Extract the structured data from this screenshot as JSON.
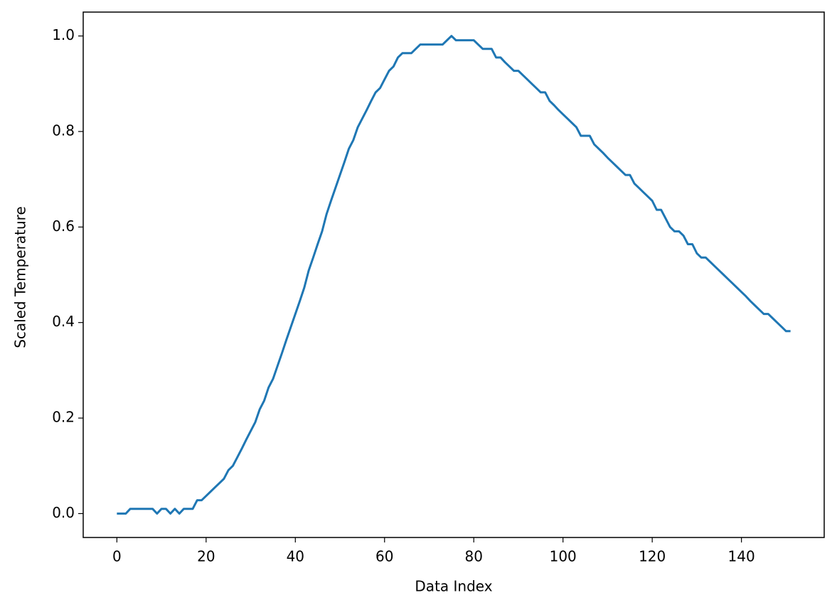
{
  "chart_data": {
    "type": "line",
    "xlabel": "Data Index",
    "ylabel": "Scaled Temperature",
    "color": "#1f77b4",
    "grid": false,
    "x": [
      0,
      1,
      2,
      3,
      4,
      5,
      6,
      7,
      8,
      9,
      10,
      11,
      12,
      13,
      14,
      15,
      16,
      17,
      18,
      19,
      20,
      21,
      22,
      23,
      24,
      25,
      26,
      27,
      28,
      29,
      30,
      31,
      32,
      33,
      34,
      35,
      36,
      37,
      38,
      39,
      40,
      41,
      42,
      43,
      44,
      45,
      46,
      47,
      48,
      49,
      50,
      51,
      52,
      53,
      54,
      55,
      56,
      57,
      58,
      59,
      60,
      61,
      62,
      63,
      64,
      65,
      66,
      67,
      68,
      69,
      70,
      71,
      72,
      73,
      74,
      75,
      76,
      77,
      78,
      79,
      80,
      81,
      82,
      83,
      84,
      85,
      86,
      87,
      88,
      89,
      90,
      91,
      92,
      93,
      94,
      95,
      96,
      97,
      98,
      99,
      100,
      101,
      102,
      103,
      104,
      105,
      106,
      107,
      108,
      109,
      110,
      111,
      112,
      113,
      114,
      115,
      116,
      117,
      118,
      119,
      120,
      121,
      122,
      123,
      124,
      125,
      126,
      127,
      128,
      129,
      130,
      131,
      132,
      133,
      134,
      135,
      136,
      137,
      138,
      139,
      140,
      141,
      142,
      143,
      144,
      145,
      146,
      147,
      148,
      149,
      150,
      151
    ],
    "values": [
      0,
      0,
      0,
      0.01,
      0.01,
      0.01,
      0.01,
      0.01,
      0.01,
      0,
      0.01,
      0.01,
      0,
      0.01,
      0,
      0.01,
      0.01,
      0.01,
      0.028,
      0.028,
      0.037,
      0.046,
      0.055,
      0.064,
      0.073,
      0.091,
      0.1,
      0.118,
      0.136,
      0.155,
      0.173,
      0.191,
      0.218,
      0.236,
      0.264,
      0.282,
      0.309,
      0.336,
      0.364,
      0.391,
      0.418,
      0.445,
      0.473,
      0.509,
      0.536,
      0.564,
      0.591,
      0.627,
      0.655,
      0.682,
      0.709,
      0.736,
      0.764,
      0.782,
      0.809,
      0.827,
      0.845,
      0.864,
      0.882,
      0.891,
      0.909,
      0.927,
      0.936,
      0.955,
      0.964,
      0.964,
      0.964,
      0.973,
      0.982,
      0.982,
      0.982,
      0.982,
      0.982,
      0.982,
      0.991,
      1.0,
      0.991,
      0.991,
      0.991,
      0.991,
      0.991,
      0.982,
      0.973,
      0.973,
      0.973,
      0.955,
      0.955,
      0.945,
      0.936,
      0.927,
      0.927,
      0.918,
      0.909,
      0.9,
      0.891,
      0.882,
      0.882,
      0.864,
      0.855,
      0.845,
      0.836,
      0.827,
      0.818,
      0.809,
      0.791,
      0.791,
      0.791,
      0.773,
      0.764,
      0.755,
      0.745,
      0.736,
      0.727,
      0.718,
      0.709,
      0.709,
      0.691,
      0.682,
      0.673,
      0.664,
      0.655,
      0.636,
      0.636,
      0.618,
      0.6,
      0.591,
      0.591,
      0.582,
      0.564,
      0.564,
      0.545,
      0.536,
      0.536,
      0.527,
      0.518,
      0.509,
      0.5,
      0.491,
      0.482,
      0.473,
      0.464,
      0.455,
      0.445,
      0.436,
      0.427,
      0.418,
      0.418,
      0.409,
      0.4,
      0.391,
      0.382,
      0.382
    ],
    "xlim": [
      -7.55,
      158.55
    ],
    "xticks": [
      0,
      20,
      40,
      60,
      80,
      100,
      120,
      140
    ],
    "ylim": [
      -0.05,
      1.05
    ],
    "yticks": [
      {
        "value": 0,
        "label": "0.0"
      },
      0.2,
      0.4,
      0.6,
      0.8,
      {
        "value": 1,
        "label": "1.0"
      }
    ]
  }
}
